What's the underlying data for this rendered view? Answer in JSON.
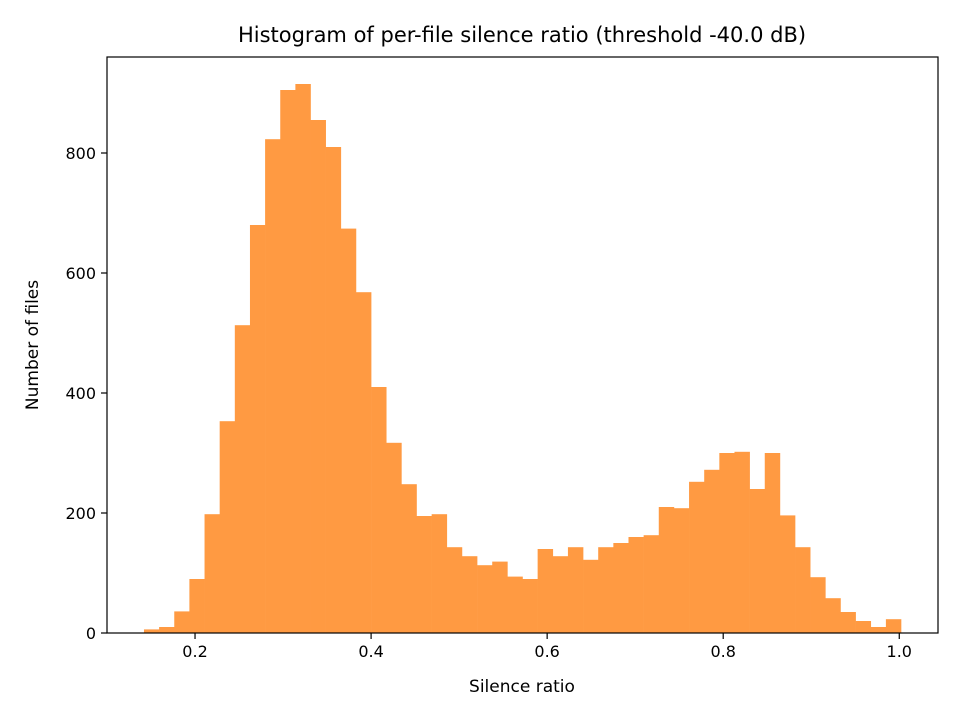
{
  "chart_data": {
    "type": "histogram",
    "title": "Histogram of per-file silence ratio (threshold -40.0 dB)",
    "xlabel": "Silence ratio",
    "ylabel": "Number of files",
    "xlim": [
      0.1,
      1.044
    ],
    "ylim": [
      0,
      960
    ],
    "grid": false,
    "bar_color": "#ff9a42",
    "x_ticks": [
      {
        "value": 0.2,
        "label": "0.2"
      },
      {
        "value": 0.4,
        "label": "0.4"
      },
      {
        "value": 0.6,
        "label": "0.6"
      },
      {
        "value": 0.8,
        "label": "0.8"
      },
      {
        "value": 1.0,
        "label": "1.0"
      }
    ],
    "y_ticks": [
      {
        "value": 0,
        "label": "0"
      },
      {
        "value": 200,
        "label": "200"
      },
      {
        "value": 400,
        "label": "400"
      },
      {
        "value": 600,
        "label": "600"
      },
      {
        "value": 800,
        "label": "800"
      }
    ],
    "bin_start": 0.142,
    "bin_width": 0.0172,
    "counts": [
      6,
      10,
      36,
      90,
      198,
      353,
      513,
      680,
      823,
      905,
      915,
      855,
      810,
      674,
      568,
      410,
      317,
      248,
      195,
      198,
      143,
      128,
      113,
      119,
      94,
      90,
      140,
      128,
      143,
      122,
      143,
      150,
      160,
      163,
      210,
      208,
      252,
      272,
      300,
      302,
      240,
      300,
      196,
      143,
      93,
      58,
      35,
      20,
      10,
      23
    ]
  }
}
